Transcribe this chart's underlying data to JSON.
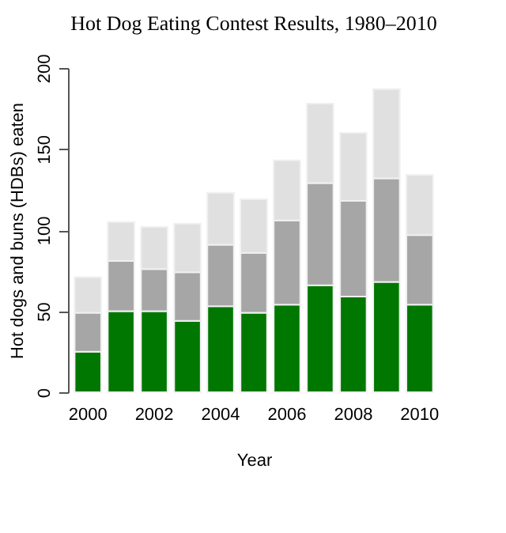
{
  "chart_data": {
    "type": "bar",
    "title": "Hot Dog Eating Contest Results, 1980–2010",
    "xlabel": "Year",
    "ylabel": "Hot dogs and buns (HDBs) eaten",
    "categories": [
      "2000",
      null,
      "2002",
      null,
      "2004",
      null,
      "2006",
      null,
      "2008",
      null,
      "2010"
    ],
    "stacked": true,
    "series": [
      {
        "color": "#007700",
        "values": [
          25,
          50,
          50,
          44,
          53,
          49,
          54,
          66,
          59,
          68,
          54
        ]
      },
      {
        "color": "#a6a6a6",
        "values": [
          24,
          31,
          26,
          30,
          38,
          37,
          52,
          63,
          59,
          64,
          43
        ]
      },
      {
        "color": "#e0e0e0",
        "values": [
          22,
          24,
          26,
          30,
          32,
          33,
          37,
          49,
          42,
          55,
          37
        ]
      }
    ],
    "ylim": [
      0,
      200
    ],
    "yticks": [
      0,
      50,
      100,
      150,
      200
    ],
    "grid": false,
    "legend": false
  }
}
